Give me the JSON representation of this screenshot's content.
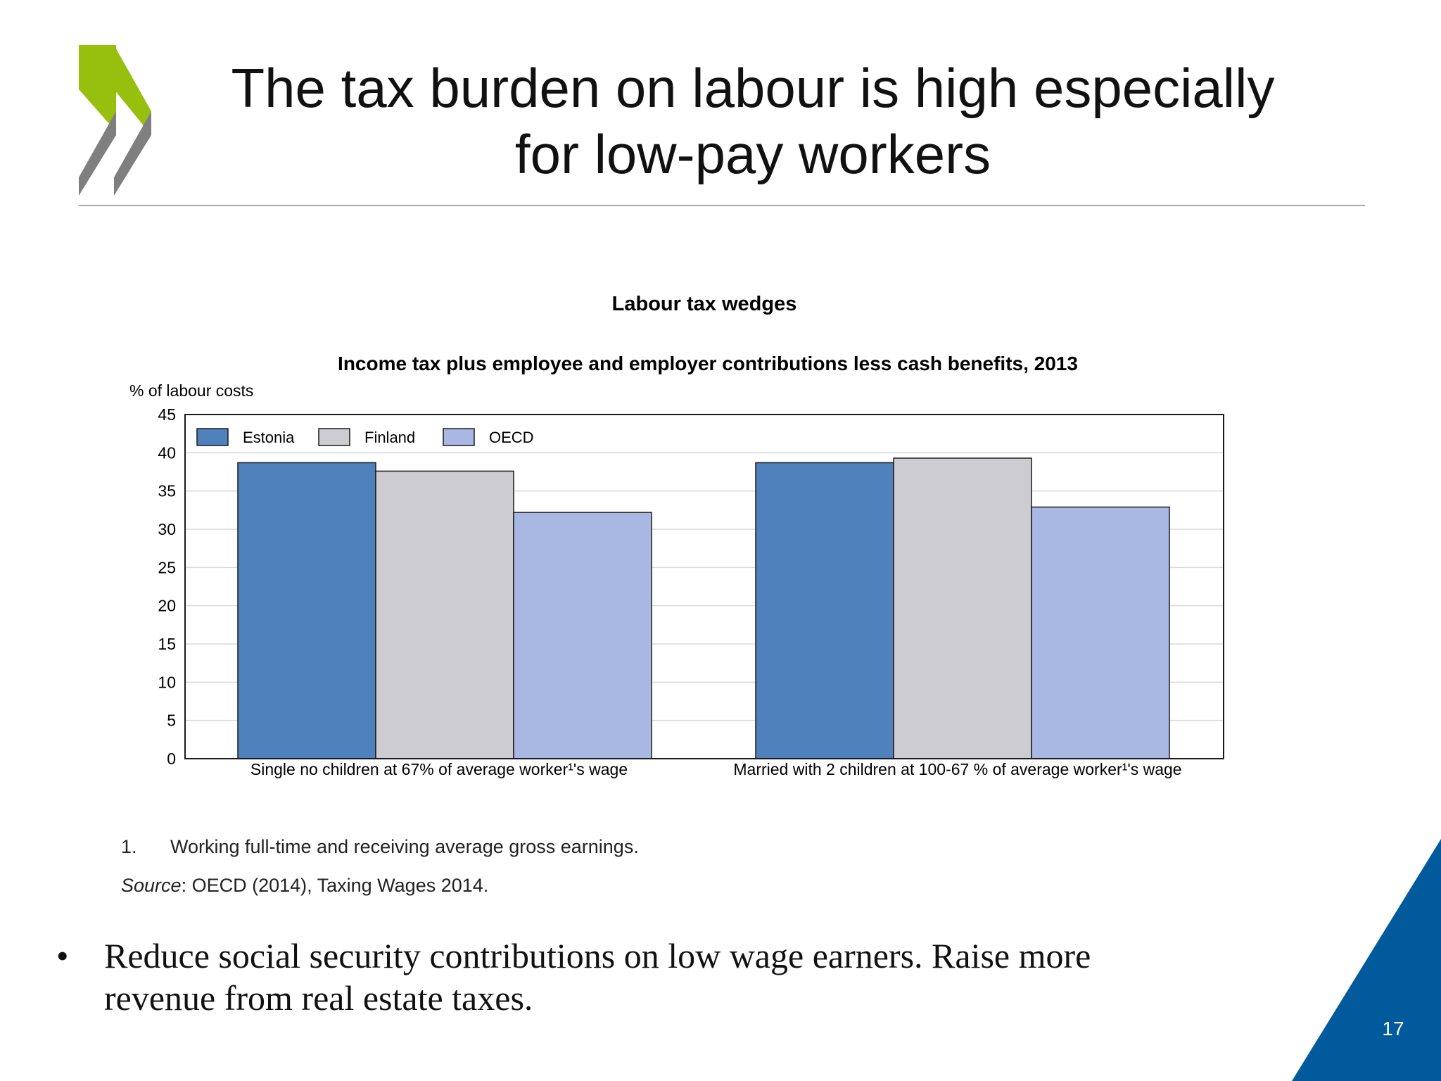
{
  "slide": {
    "title_line1": "The tax burden on labour is high especially",
    "title_line2": "for low-pay workers",
    "footnote_number": "1.",
    "footnote_text": "Working full-time and receiving average gross earnings.",
    "source_label": "Source",
    "source_text": ": OECD (2014), Taxing Wages 2014.",
    "bullet_symbol": "•",
    "bullet_line1": "Reduce social security contributions on low wage earners. Raise more",
    "bullet_line2": "revenue from real estate taxes.",
    "page_number": "17",
    "colors": {
      "logo_green": "#97bf0d",
      "logo_grey": "#7f7f7f",
      "corner_blue": "#005a9c"
    },
    "icons": {
      "logo": "oecd-chevrons-logo"
    }
  },
  "chart_data": {
    "type": "bar",
    "title": "Labour tax wedges",
    "subtitle": "Income tax plus employee and employer contributions less cash benefits, 2013",
    "ylabel": "% of labour costs",
    "ylim": [
      0,
      45
    ],
    "yticks": [
      0,
      5,
      10,
      15,
      20,
      25,
      30,
      35,
      40,
      45
    ],
    "grid": true,
    "legend_position": "top-left",
    "categories": [
      "Single no children at 67% of average worker¹'s wage",
      "Married with 2 children at 100-67 % of average worker¹'s wage"
    ],
    "series": [
      {
        "name": "Estonia",
        "color": "#4f81bd",
        "values": [
          38.7,
          38.7
        ]
      },
      {
        "name": "Finland",
        "color": "#cdccd1",
        "values": [
          37.6,
          39.3
        ]
      },
      {
        "name": "OECD",
        "color": "#a9b8e2",
        "values": [
          32.2,
          32.9
        ]
      }
    ]
  }
}
